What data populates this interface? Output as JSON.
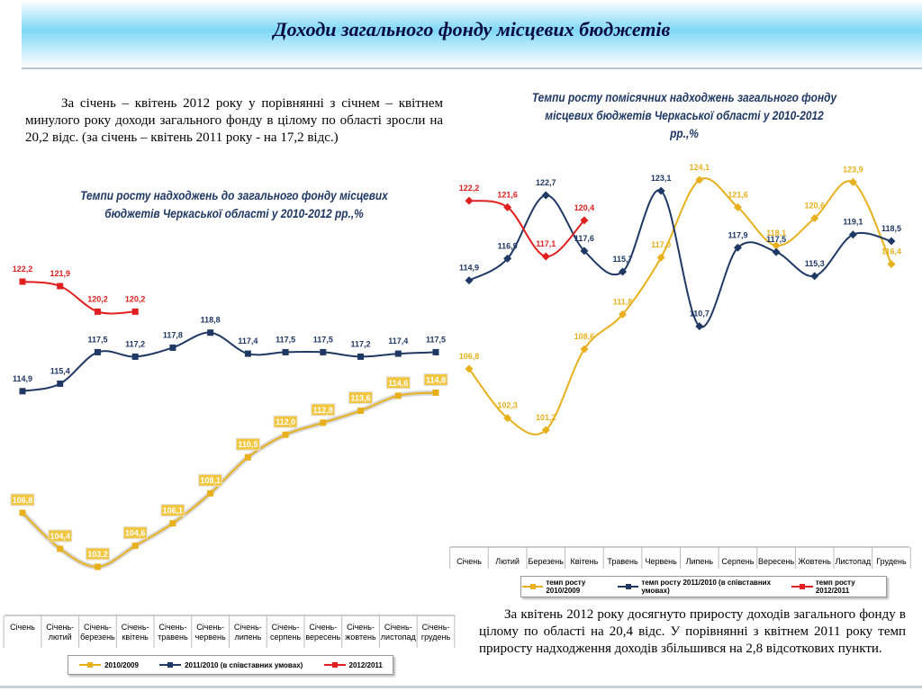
{
  "header": {
    "title": "Доходи загального фонду місцевих бюджетів"
  },
  "text": {
    "left": "За січень – квітень 2012 року у порівнянні з січнем – квітнем минулого року доходи загального фонду в цілому по області  зросли на 20,2 відс. (за січень – квітень 2011 року - на 17,2 відс.)",
    "right": "За квітень 2012 року досягнуто приросту доходів загального фонду в цілому по області на 20,4 відс. У порівнянні з квітнем 2011 року темп приросту надходження доходів збільшився на 2,8 відсоткових пункти."
  },
  "chart_data": [
    {
      "type": "line",
      "title": "Темпи росту надходжень до загального фонду місцевих бюджетів Черкаської області у 2010-2012 рр.,%",
      "categories": [
        "Січень",
        "Січень-лютий",
        "Січень-березень",
        "Січень-квітень",
        "Січень-травень",
        "Січень-червень",
        "Січень-липень",
        "Січень-серпень",
        "Січень-вересень",
        "Січень-жовтень",
        "Січень-листопад",
        "Січень-грудень"
      ],
      "series": [
        {
          "name": "2010/2009",
          "color": "#e8b01c",
          "values": [
            106.8,
            104.4,
            103.2,
            104.6,
            106.1,
            108.1,
            110.5,
            112.0,
            112.8,
            113.6,
            114.6,
            114.8
          ],
          "value_labels": [
            "106,8",
            "104,4",
            "103,2",
            "104,6",
            "106,1",
            "108,1",
            "110,5",
            "112,0",
            "112,8",
            "113,6",
            "114,6",
            "114,8"
          ]
        },
        {
          "name": "2011/2010 (в співставних умовах)",
          "color": "#1f3864",
          "values": [
            114.9,
            115.4,
            117.5,
            117.2,
            117.8,
            118.8,
            117.4,
            117.5,
            117.5,
            117.2,
            117.4,
            117.5
          ],
          "value_labels": [
            "114,9",
            "115,4",
            "117,5",
            "117,2",
            "117,8",
            "118,8",
            "117,4",
            "117,5",
            "117,5",
            "117,2",
            "117,4",
            "117,5"
          ]
        },
        {
          "name": "2012/2011",
          "color": "#e02020",
          "values": [
            122.2,
            121.9,
            120.2,
            120.2,
            null,
            null,
            null,
            null,
            null,
            null,
            null,
            null
          ],
          "value_labels": [
            "122,2",
            "121,9",
            "120,2",
            "120,2",
            null,
            null,
            null,
            null,
            null,
            null,
            null,
            null
          ]
        }
      ]
    },
    {
      "type": "line",
      "title": "Темпи росту помісячних надходжень загального фонду місцевих бюджетів Черкаської області у 2010-2012 рр.,%",
      "categories": [
        "Січень",
        "Лютий",
        "Березень",
        "Квітень",
        "Травень",
        "Червень",
        "Липень",
        "Серпень",
        "Вересень",
        "Жовтень",
        "Листопад",
        "Грудень"
      ],
      "series": [
        {
          "name": "темп росту 2010/2009",
          "color": "#e8b01c",
          "values": [
            106.8,
            102.3,
            101.2,
            108.6,
            111.8,
            117.0,
            124.1,
            121.6,
            118.1,
            120.6,
            123.9,
            116.4
          ],
          "value_labels": [
            "106,8",
            "102,3",
            "101,2",
            "108,6",
            "111,8",
            "117,0",
            "124,1",
            "121,6",
            "118,1",
            "120,6",
            "123,9",
            "116,4"
          ]
        },
        {
          "name": "темп росту 2011/2010 (в співставних умовах)",
          "color": "#1f3864",
          "values": [
            114.9,
            116.9,
            122.7,
            117.6,
            115.7,
            123.1,
            110.7,
            117.9,
            117.5,
            115.3,
            119.1,
            118.5
          ],
          "value_labels": [
            "114,9",
            "116,9",
            "122,7",
            "117,6",
            "115,7",
            "123,1",
            "110,7",
            "117,9",
            "117,5",
            "115,3",
            "119,1",
            "118,5"
          ]
        },
        {
          "name": "темп росту 2012/2011",
          "color": "#e02020",
          "values": [
            122.2,
            121.6,
            117.1,
            120.4,
            null,
            null,
            null,
            null,
            null,
            null,
            null,
            null
          ],
          "value_labels": [
            "122,2",
            "121,6",
            "117,1",
            "120,4",
            null,
            null,
            null,
            null,
            null,
            null,
            null,
            null
          ]
        }
      ]
    }
  ]
}
